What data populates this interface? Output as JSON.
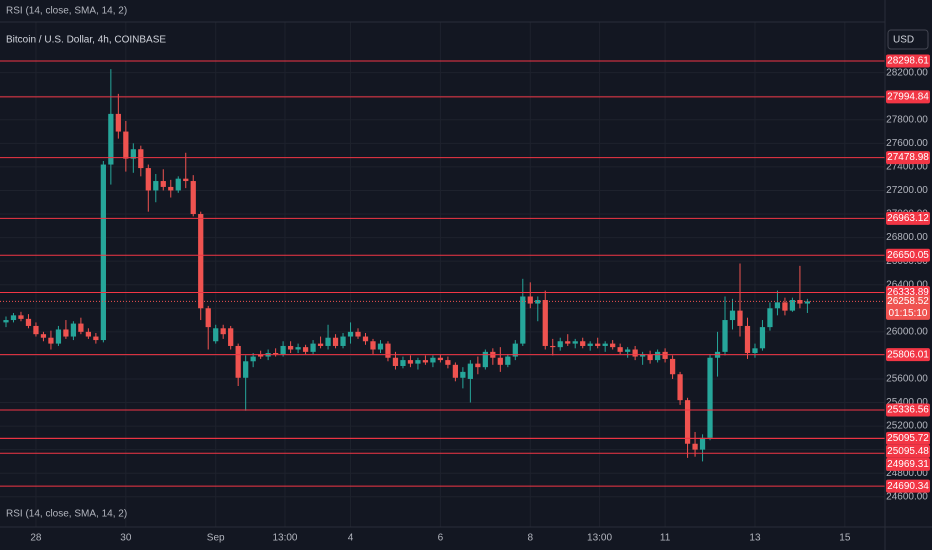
{
  "chart_data": {
    "type": "candlestick",
    "indicator_label_top": "RSI (14, close, SMA, 14, 2)",
    "title": "Bitcoin / U.S. Dollar, 4h, COINBASE",
    "currency": "USD",
    "indicator_label_bottom": "RSI (14, close, SMA, 14, 2)",
    "up_color": "#26a69a",
    "down_color": "#ef5350",
    "level_color": "#f23645",
    "grid": true,
    "ylim": [
      24530,
      28630
    ],
    "yticks": [
      {
        "value": 24600,
        "label": "24600.00"
      },
      {
        "value": 24800,
        "label": "24800.00"
      },
      {
        "value": 25000,
        "label": "25000.00"
      },
      {
        "value": 25200,
        "label": "25200.00"
      },
      {
        "value": 25400,
        "label": "25400.00"
      },
      {
        "value": 25600,
        "label": "25600.00"
      },
      {
        "value": 25800,
        "label": "25800.00"
      },
      {
        "value": 26000,
        "label": "26000.00"
      },
      {
        "value": 26200,
        "label": "26200.00"
      },
      {
        "value": 26400,
        "label": "26400.00"
      },
      {
        "value": 26600,
        "label": "26600.00"
      },
      {
        "value": 26800,
        "label": "26800.00"
      },
      {
        "value": 27000,
        "label": "27000.00"
      },
      {
        "value": 27200,
        "label": "27200.00"
      },
      {
        "value": 27400,
        "label": "27400.00"
      },
      {
        "value": 27600,
        "label": "27600.00"
      },
      {
        "value": 27800,
        "label": "27800.00"
      },
      {
        "value": 28000,
        "label": "28000.00"
      },
      {
        "value": 28200,
        "label": "28200.00"
      }
    ],
    "xlim": [
      -0.8,
      117.36
    ],
    "xticks": [
      {
        "value": 4,
        "label": "28"
      },
      {
        "value": 16,
        "label": "30"
      },
      {
        "value": 28,
        "label": "Sep"
      },
      {
        "value": 37.25,
        "label": "13:00"
      },
      {
        "value": 46,
        "label": "4"
      },
      {
        "value": 58,
        "label": "6"
      },
      {
        "value": 70,
        "label": "8"
      },
      {
        "value": 79.25,
        "label": "13:00"
      },
      {
        "value": 88,
        "label": "11"
      },
      {
        "value": 100,
        "label": "13"
      },
      {
        "value": 112,
        "label": "15"
      }
    ],
    "levels": [
      28298.61,
      27994.84,
      27478.98,
      26963.12,
      26650.05,
      26333.89,
      25806.01,
      25336.56,
      25095.72,
      25095.48,
      24969.31,
      24690.34
    ],
    "last_price": 26258.52,
    "countdown": "01:15:10",
    "ohlc": [
      [
        26080,
        26130,
        26040,
        26100
      ],
      [
        26100,
        26160,
        26080,
        26140
      ],
      [
        26140,
        26170,
        26090,
        26110
      ],
      [
        26110,
        26150,
        26030,
        26050
      ],
      [
        26050,
        26080,
        25960,
        25980
      ],
      [
        25980,
        26000,
        25920,
        25950
      ],
      [
        25950,
        26010,
        25850,
        25900
      ],
      [
        25900,
        26050,
        25880,
        26020
      ],
      [
        26020,
        26100,
        25940,
        25960
      ],
      [
        25960,
        26090,
        25930,
        26070
      ],
      [
        26070,
        26120,
        25980,
        26000
      ],
      [
        26000,
        26030,
        25940,
        25960
      ],
      [
        25960,
        25990,
        25900,
        25930
      ],
      [
        25930,
        27450,
        25910,
        27420
      ],
      [
        27420,
        28230,
        27250,
        27850
      ],
      [
        27850,
        28020,
        27640,
        27700
      ],
      [
        27700,
        27790,
        27360,
        27470
      ],
      [
        27470,
        27600,
        27350,
        27550
      ],
      [
        27550,
        27580,
        27320,
        27390
      ],
      [
        27390,
        27420,
        27020,
        27200
      ],
      [
        27200,
        27340,
        27100,
        27280
      ],
      [
        27280,
        27380,
        27200,
        27230
      ],
      [
        27230,
        27290,
        27140,
        27200
      ],
      [
        27200,
        27320,
        27180,
        27300
      ],
      [
        27300,
        27520,
        27220,
        27280
      ],
      [
        27280,
        27330,
        26980,
        27000
      ],
      [
        27000,
        27020,
        26100,
        26200
      ],
      [
        26200,
        26220,
        25850,
        26040
      ],
      [
        25920,
        26060,
        25900,
        26030
      ],
      [
        26030,
        26060,
        25940,
        25980
      ],
      [
        26030,
        26050,
        25850,
        25880
      ],
      [
        25880,
        25900,
        25540,
        25610
      ],
      [
        25610,
        25800,
        25330,
        25750
      ],
      [
        25750,
        25820,
        25700,
        25790
      ],
      [
        25810,
        25840,
        25770,
        25790
      ],
      [
        25790,
        25850,
        25760,
        25820
      ],
      [
        25820,
        25860,
        25790,
        25810
      ],
      [
        25810,
        25920,
        25790,
        25880
      ],
      [
        25880,
        25920,
        25820,
        25850
      ],
      [
        25850,
        25900,
        25820,
        25870
      ],
      [
        25870,
        25890,
        25810,
        25830
      ],
      [
        25830,
        25930,
        25810,
        25900
      ],
      [
        25900,
        25960,
        25860,
        25880
      ],
      [
        25880,
        26060,
        25850,
        25950
      ],
      [
        25950,
        25980,
        25860,
        25880
      ],
      [
        25880,
        25990,
        25860,
        25960
      ],
      [
        25960,
        26080,
        25900,
        26000
      ],
      [
        26000,
        26030,
        25940,
        25960
      ],
      [
        25960,
        25990,
        25890,
        25920
      ],
      [
        25920,
        25940,
        25810,
        25850
      ],
      [
        25850,
        25930,
        25820,
        25900
      ],
      [
        25900,
        25920,
        25750,
        25780
      ],
      [
        25780,
        25830,
        25680,
        25710
      ],
      [
        25710,
        25790,
        25690,
        25760
      ],
      [
        25760,
        25800,
        25700,
        25730
      ],
      [
        25730,
        25780,
        25680,
        25760
      ],
      [
        25760,
        25800,
        25720,
        25740
      ],
      [
        25740,
        25800,
        25700,
        25780
      ],
      [
        25780,
        25810,
        25740,
        25760
      ],
      [
        25760,
        25790,
        25690,
        25720
      ],
      [
        25720,
        25740,
        25580,
        25610
      ],
      [
        25610,
        25700,
        25520,
        25660
      ],
      [
        25600,
        25760,
        25400,
        25730
      ],
      [
        25730,
        25790,
        25640,
        25700
      ],
      [
        25700,
        25850,
        25680,
        25830
      ],
      [
        25830,
        25860,
        25720,
        25780
      ],
      [
        25780,
        25870,
        25660,
        25720
      ],
      [
        25720,
        25810,
        25700,
        25790
      ],
      [
        25790,
        25930,
        25760,
        25900
      ],
      [
        25900,
        26450,
        25880,
        26300
      ],
      [
        26300,
        26420,
        26200,
        26240
      ],
      [
        26240,
        26300,
        26090,
        26270
      ],
      [
        26270,
        26350,
        25850,
        25880
      ],
      [
        25880,
        25940,
        25800,
        25870
      ],
      [
        25870,
        25950,
        25840,
        25920
      ],
      [
        25920,
        25980,
        25880,
        25900
      ],
      [
        25900,
        25940,
        25860,
        25920
      ],
      [
        25920,
        25950,
        25860,
        25880
      ],
      [
        25880,
        25920,
        25840,
        25900
      ],
      [
        25900,
        25950,
        25860,
        25880
      ],
      [
        25880,
        25920,
        25830,
        25900
      ],
      [
        25900,
        25930,
        25850,
        25870
      ],
      [
        25870,
        25900,
        25810,
        25830
      ],
      [
        25830,
        25870,
        25780,
        25850
      ],
      [
        25850,
        25880,
        25760,
        25790
      ],
      [
        25790,
        25830,
        25720,
        25810
      ],
      [
        25810,
        25840,
        25730,
        25760
      ],
      [
        25760,
        25850,
        25740,
        25830
      ],
      [
        25830,
        25860,
        25740,
        25770
      ],
      [
        25770,
        25800,
        25600,
        25640
      ],
      [
        25640,
        25660,
        25380,
        25420
      ],
      [
        25420,
        25440,
        24930,
        25050
      ],
      [
        25050,
        25150,
        24940,
        25000
      ],
      [
        25000,
        25130,
        24900,
        25100
      ],
      [
        25100,
        25810,
        25080,
        25780
      ],
      [
        25780,
        26000,
        25620,
        25830
      ],
      [
        25830,
        26300,
        25800,
        26100
      ],
      [
        26100,
        26280,
        26020,
        26180
      ],
      [
        26180,
        26580,
        25960,
        26050
      ],
      [
        26050,
        26120,
        25770,
        25820
      ],
      [
        25820,
        25900,
        25780,
        25860
      ],
      [
        25860,
        26100,
        25840,
        26040
      ],
      [
        26040,
        26250,
        26010,
        26200
      ],
      [
        26200,
        26350,
        26140,
        26250
      ],
      [
        26250,
        26290,
        26140,
        26180
      ],
      [
        26180,
        26290,
        26170,
        26270
      ],
      [
        26270,
        26560,
        26200,
        26240
      ],
      [
        26240,
        26280,
        26160,
        26258.52
      ]
    ]
  }
}
